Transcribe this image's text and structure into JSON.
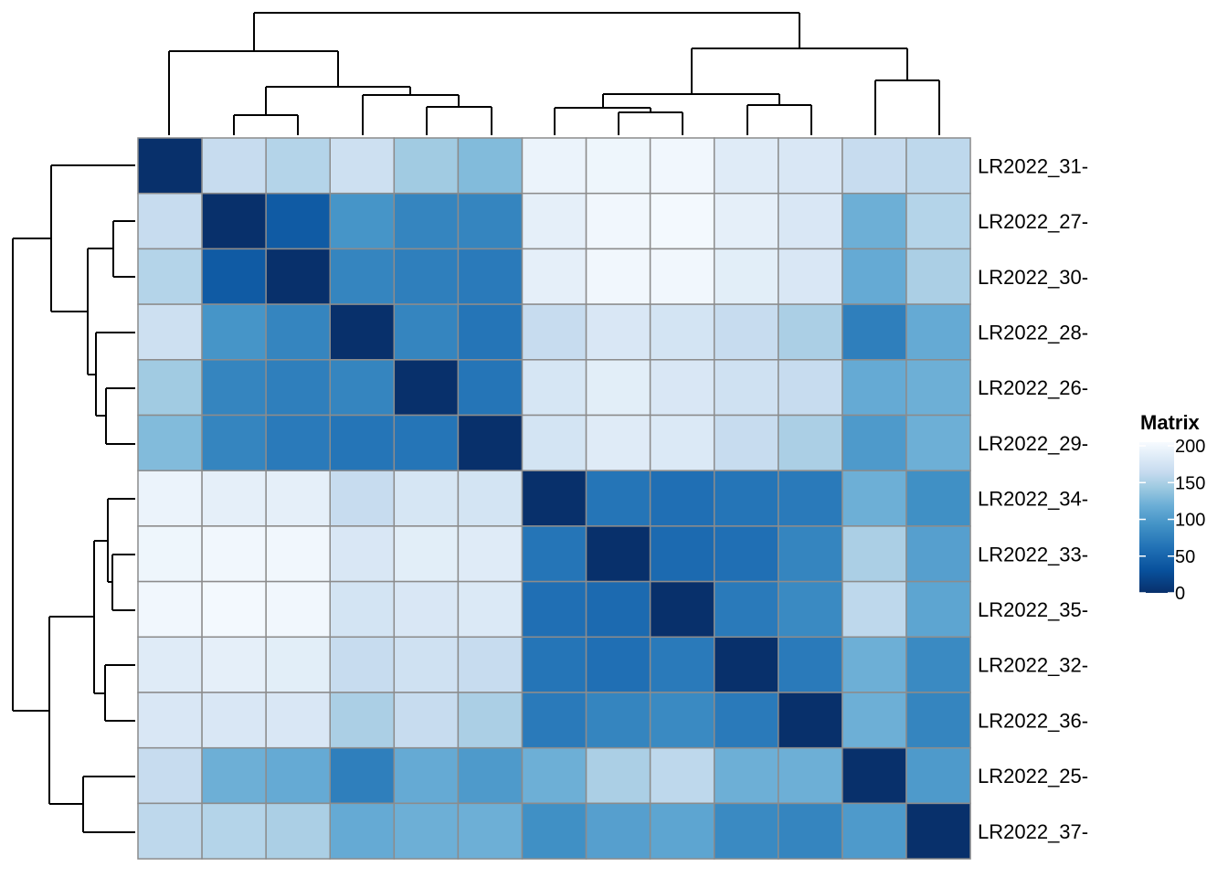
{
  "chart_data": {
    "type": "heatmap",
    "row_labels": [
      "LR2022_31-",
      "LR2022_27-",
      "LR2022_30-",
      "LR2022_28-",
      "LR2022_26-",
      "LR2022_29-",
      "LR2022_34-",
      "LR2022_33-",
      "LR2022_35-",
      "LR2022_32-",
      "LR2022_36-",
      "LR2022_25-",
      "LR2022_37-"
    ],
    "column_labels": [],
    "values": [
      [
        0,
        165,
        155,
        170,
        145,
        130,
        195,
        198,
        200,
        185,
        180,
        165,
        160
      ],
      [
        165,
        0,
        40,
        95,
        80,
        80,
        190,
        200,
        202,
        190,
        180,
        120,
        155
      ],
      [
        155,
        40,
        0,
        80,
        75,
        70,
        190,
        200,
        200,
        188,
        180,
        115,
        150
      ],
      [
        170,
        95,
        80,
        0,
        80,
        65,
        165,
        180,
        175,
        165,
        150,
        75,
        115
      ],
      [
        145,
        80,
        75,
        80,
        0,
        65,
        178,
        188,
        180,
        172,
        165,
        115,
        120
      ],
      [
        130,
        80,
        70,
        65,
        65,
        0,
        175,
        185,
        182,
        165,
        150,
        100,
        120
      ],
      [
        195,
        190,
        190,
        165,
        178,
        175,
        0,
        65,
        60,
        65,
        70,
        120,
        90
      ],
      [
        198,
        200,
        200,
        180,
        188,
        185,
        65,
        0,
        55,
        60,
        80,
        150,
        105
      ],
      [
        200,
        202,
        200,
        175,
        180,
        182,
        60,
        55,
        0,
        70,
        85,
        160,
        110
      ],
      [
        185,
        190,
        188,
        165,
        172,
        165,
        65,
        60,
        70,
        0,
        70,
        120,
        85
      ],
      [
        180,
        180,
        180,
        150,
        165,
        150,
        70,
        80,
        85,
        70,
        0,
        120,
        80
      ],
      [
        165,
        120,
        115,
        75,
        115,
        100,
        120,
        150,
        160,
        120,
        120,
        0,
        100
      ],
      [
        160,
        155,
        150,
        115,
        120,
        120,
        90,
        105,
        110,
        85,
        80,
        100,
        0
      ]
    ],
    "legend": {
      "title": "Matrix",
      "ticks": [
        200,
        150,
        100,
        50,
        0
      ],
      "range": [
        0,
        205
      ],
      "placement": "right"
    },
    "colors": {
      "low": "#08306b",
      "high": "#f7fbff",
      "cell_border": "#8c8c8c"
    },
    "column_dendrogram": true,
    "row_dendrogram": true
  }
}
